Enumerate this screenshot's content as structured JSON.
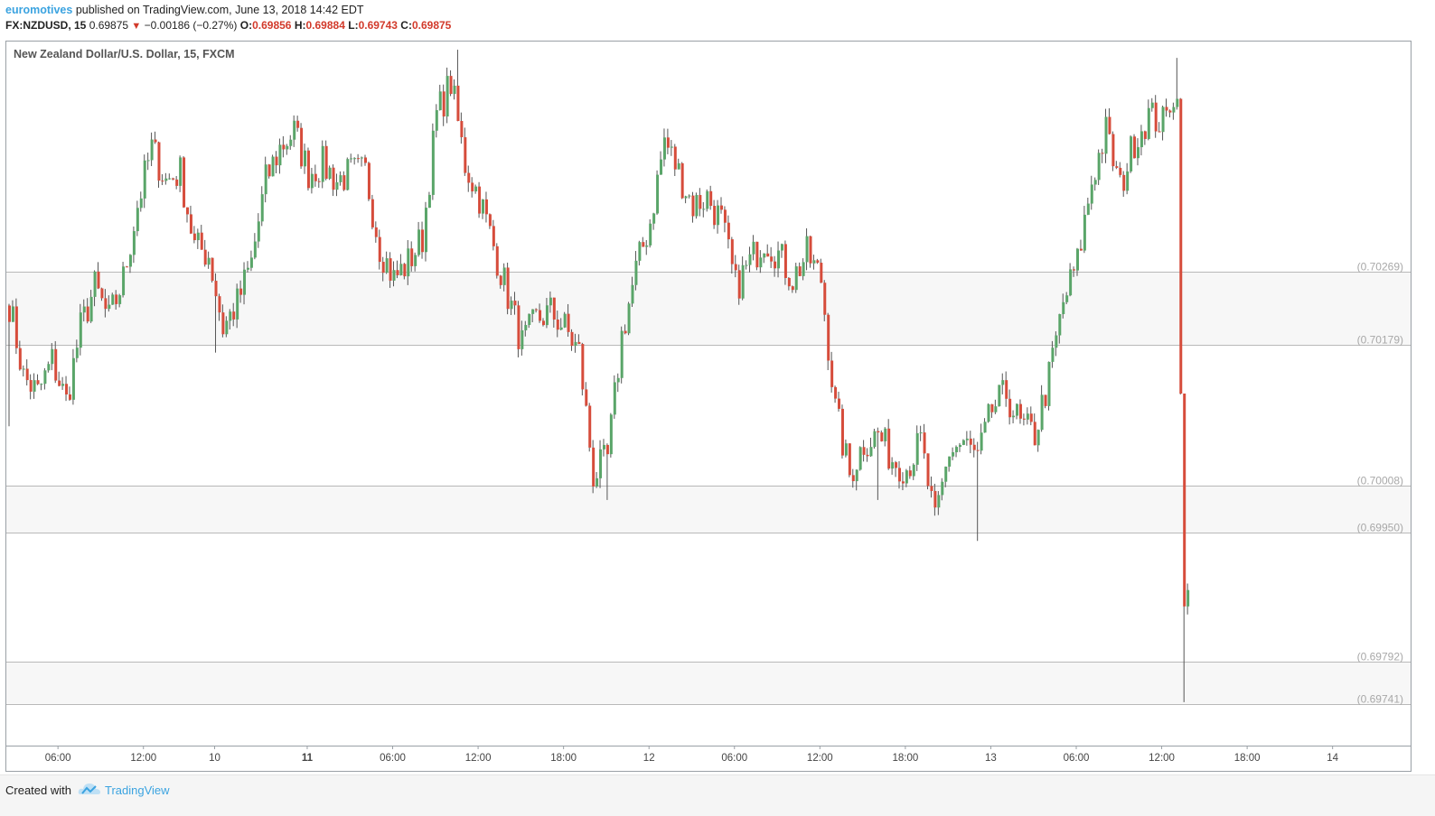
{
  "header": {
    "author": "euromotives",
    "published_text": "published on TradingView.com, June 13, 2018 14:42 EDT",
    "symbol": "FX:NZDUSD, 15",
    "last_price": "0.69875",
    "change": "−0.00186 (−0.27%)",
    "ohlc": {
      "o_label": "O:",
      "o_value": "0.69856",
      "h_label": "H:",
      "h_value": "0.69884",
      "l_label": "L:",
      "l_value": "0.69743",
      "c_label": "C:",
      "c_value": "0.69875"
    }
  },
  "footer": {
    "created_with": "Created with",
    "brand": "TradingView"
  },
  "colors": {
    "up": "#5aa569",
    "down": "#d64c3b",
    "level_line": "#b9b9b9",
    "band_fill": "#f7f7f7",
    "label": "#a8a8a8",
    "axis_text": "#444444"
  },
  "chart_data": {
    "type": "candlestick",
    "title": "New Zealand Dollar/U.S. Dollar, 15, FXCM",
    "interval": "15",
    "xlabel": "",
    "ylabel": "",
    "x_ticks": [
      {
        "label": "06:00",
        "index": 14,
        "bold": false
      },
      {
        "label": "12:00",
        "index": 38,
        "bold": false
      },
      {
        "label": "10",
        "index": 58,
        "bold": false
      },
      {
        "label": "11",
        "index": 84,
        "bold": true
      },
      {
        "label": "06:00",
        "index": 108,
        "bold": false
      },
      {
        "label": "12:00",
        "index": 132,
        "bold": false
      },
      {
        "label": "18:00",
        "index": 156,
        "bold": false
      },
      {
        "label": "12",
        "index": 180,
        "bold": false
      },
      {
        "label": "06:00",
        "index": 204,
        "bold": false
      },
      {
        "label": "12:00",
        "index": 228,
        "bold": false
      },
      {
        "label": "18:00",
        "index": 252,
        "bold": false
      },
      {
        "label": "13",
        "index": 276,
        "bold": false
      },
      {
        "label": "06:00",
        "index": 300,
        "bold": false
      },
      {
        "label": "12:00",
        "index": 324,
        "bold": false
      },
      {
        "label": "18:00",
        "index": 348,
        "bold": false
      },
      {
        "label": "14",
        "index": 372,
        "bold": false
      }
    ],
    "levels": [
      {
        "value": 0.70269,
        "label": "(0.70269)"
      },
      {
        "value": 0.70179,
        "label": "(0.70179)"
      },
      {
        "value": 0.70008,
        "label": "(0.70008)"
      },
      {
        "value": 0.6995,
        "label": "(0.69950)"
      },
      {
        "value": 0.69792,
        "label": "(0.69792)"
      },
      {
        "value": 0.69741,
        "label": "(0.69741)"
      }
    ],
    "bands": [
      [
        0.70179,
        0.70269
      ],
      [
        0.6995,
        0.70008
      ],
      [
        0.69741,
        0.69792
      ]
    ],
    "ylim": [
      0.6969,
      0.7055
    ],
    "anchors": [
      [
        0,
        0.7023
      ],
      [
        4,
        0.7014
      ],
      [
        8,
        0.7012
      ],
      [
        12,
        0.7016
      ],
      [
        16,
        0.7011
      ],
      [
        20,
        0.702
      ],
      [
        24,
        0.7025
      ],
      [
        28,
        0.7021
      ],
      [
        32,
        0.7026
      ],
      [
        36,
        0.7035
      ],
      [
        40,
        0.7042
      ],
      [
        44,
        0.7038
      ],
      [
        48,
        0.7039
      ],
      [
        52,
        0.703
      ],
      [
        56,
        0.7029
      ],
      [
        60,
        0.702
      ],
      [
        64,
        0.7023
      ],
      [
        68,
        0.7028
      ],
      [
        72,
        0.7038
      ],
      [
        76,
        0.7042
      ],
      [
        80,
        0.7044
      ],
      [
        84,
        0.7039
      ],
      [
        88,
        0.704
      ],
      [
        92,
        0.7038
      ],
      [
        96,
        0.7039
      ],
      [
        100,
        0.7039
      ],
      [
        104,
        0.703
      ],
      [
        108,
        0.7026
      ],
      [
        112,
        0.7028
      ],
      [
        116,
        0.7031
      ],
      [
        120,
        0.7046
      ],
      [
        124,
        0.705
      ],
      [
        128,
        0.704
      ],
      [
        132,
        0.7036
      ],
      [
        136,
        0.703
      ],
      [
        140,
        0.7024
      ],
      [
        144,
        0.7018
      ],
      [
        148,
        0.7021
      ],
      [
        152,
        0.7022
      ],
      [
        156,
        0.702
      ],
      [
        160,
        0.7017
      ],
      [
        164,
        0.7002
      ],
      [
        168,
        0.7004
      ],
      [
        172,
        0.7019
      ],
      [
        176,
        0.7027
      ],
      [
        180,
        0.7033
      ],
      [
        184,
        0.7043
      ],
      [
        188,
        0.7039
      ],
      [
        192,
        0.7035
      ],
      [
        196,
        0.7036
      ],
      [
        200,
        0.7033
      ],
      [
        204,
        0.7025
      ],
      [
        208,
        0.7028
      ],
      [
        212,
        0.7031
      ],
      [
        216,
        0.7029
      ],
      [
        220,
        0.7026
      ],
      [
        224,
        0.7029
      ],
      [
        228,
        0.7026
      ],
      [
        232,
        0.701
      ],
      [
        236,
        0.7002
      ],
      [
        240,
        0.7006
      ],
      [
        244,
        0.7007
      ],
      [
        248,
        0.7004
      ],
      [
        252,
        0.7003
      ],
      [
        256,
        0.7006
      ],
      [
        260,
        0.6996
      ],
      [
        264,
        0.7005
      ],
      [
        268,
        0.7006
      ],
      [
        272,
        0.7004
      ],
      [
        276,
        0.701
      ],
      [
        280,
        0.7012
      ],
      [
        284,
        0.7008
      ],
      [
        288,
        0.7007
      ],
      [
        292,
        0.7014
      ],
      [
        296,
        0.7023
      ],
      [
        300,
        0.7028
      ],
      [
        304,
        0.7038
      ],
      [
        308,
        0.7044
      ],
      [
        312,
        0.7037
      ],
      [
        316,
        0.7043
      ],
      [
        320,
        0.7046
      ],
      [
        324,
        0.7045
      ],
      [
        327,
        0.7047
      ],
      [
        328,
        0.7048
      ],
      [
        329,
        0.7012
      ],
      [
        330,
        0.6986
      ],
      [
        331,
        0.6988
      ]
    ],
    "wick_events": [
      {
        "index": 0,
        "low": 0.7008
      },
      {
        "index": 58,
        "low": 0.7017
      },
      {
        "index": 126,
        "high": 0.7054
      },
      {
        "index": 168,
        "low": 0.6999
      },
      {
        "index": 244,
        "low": 0.6999
      },
      {
        "index": 272,
        "low": 0.6994
      },
      {
        "index": 328,
        "high": 0.7053
      },
      {
        "index": 330,
        "low": 0.69743,
        "high": 0.701
      }
    ]
  }
}
